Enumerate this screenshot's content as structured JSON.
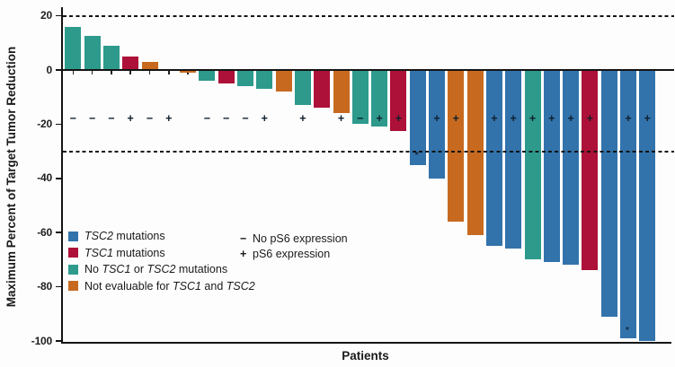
{
  "chart_data": {
    "type": "bar",
    "title": "",
    "xlabel": "Patients",
    "ylabel": "Maximum Percent of Target Tumor Reduction",
    "ylim": [
      -100,
      22
    ],
    "yticks": [
      20,
      0,
      -20,
      -40,
      -60,
      -80,
      -100
    ],
    "reference_lines_dashed": [
      20,
      -30
    ],
    "grid": false,
    "colors": {
      "tsc2": "#3273ac",
      "tsc1": "#ad1038",
      "no_tsc1_tsc2": "#2d9a8c",
      "not_evaluable": "#c76a20"
    },
    "patients": [
      {
        "value": 16,
        "group": "no_tsc1_tsc2",
        "ps6": "−"
      },
      {
        "value": 12.5,
        "group": "no_tsc1_tsc2",
        "ps6": "−"
      },
      {
        "value": 9,
        "group": "no_tsc1_tsc2",
        "ps6": "−"
      },
      {
        "value": 5,
        "group": "tsc1",
        "ps6": "+"
      },
      {
        "value": 3,
        "group": "not_evaluable",
        "ps6": "−"
      },
      {
        "value": 0,
        "group": null,
        "ps6": "+"
      },
      {
        "value": -1,
        "group": "not_evaluable",
        "ps6": null
      },
      {
        "value": -4,
        "group": "no_tsc1_tsc2",
        "ps6": "−"
      },
      {
        "value": -5,
        "group": "tsc1",
        "ps6": "−"
      },
      {
        "value": -6,
        "group": "no_tsc1_tsc2",
        "ps6": "−"
      },
      {
        "value": -7,
        "group": "no_tsc1_tsc2",
        "ps6": "+"
      },
      {
        "value": -8,
        "group": "not_evaluable",
        "ps6": null
      },
      {
        "value": -13,
        "group": "no_tsc1_tsc2",
        "ps6": "+"
      },
      {
        "value": -14,
        "group": "tsc1",
        "ps6": null
      },
      {
        "value": -16,
        "group": "not_evaluable",
        "ps6": "+"
      },
      {
        "value": -20,
        "group": "no_tsc1_tsc2",
        "ps6": "−"
      },
      {
        "value": -21,
        "group": "no_tsc1_tsc2",
        "ps6": "+"
      },
      {
        "value": -22.5,
        "group": "tsc1",
        "ps6": "+"
      },
      {
        "value": -35,
        "group": "tsc2",
        "ps6": null,
        "marker": "*",
        "marker_value": -31.5
      },
      {
        "value": -40,
        "group": "tsc2",
        "ps6": "+"
      },
      {
        "value": -56,
        "group": "not_evaluable",
        "ps6": "+"
      },
      {
        "value": -61,
        "group": "not_evaluable",
        "ps6": null
      },
      {
        "value": -65,
        "group": "tsc2",
        "ps6": "+"
      },
      {
        "value": -66,
        "group": "tsc2",
        "ps6": "+"
      },
      {
        "value": -70,
        "group": "no_tsc1_tsc2",
        "ps6": "+"
      },
      {
        "value": -71,
        "group": "tsc2",
        "ps6": "+"
      },
      {
        "value": -72,
        "group": "tsc2",
        "ps6": "+"
      },
      {
        "value": -74,
        "group": "tsc1",
        "ps6": "+"
      },
      {
        "value": -91,
        "group": "tsc2",
        "ps6": null
      },
      {
        "value": -99,
        "group": "tsc2",
        "ps6": "+",
        "marker": "*",
        "marker_value": -96
      },
      {
        "value": -100,
        "group": "tsc2",
        "ps6": "+"
      }
    ],
    "legend": {
      "items": [
        {
          "color_key": "tsc2",
          "segments": [
            {
              "t": "TSC2",
              "i": true
            },
            {
              "t": " mutations",
              "i": false
            }
          ]
        },
        {
          "color_key": "tsc1",
          "segments": [
            {
              "t": "TSC1",
              "i": true
            },
            {
              "t": " mutations",
              "i": false
            }
          ]
        },
        {
          "color_key": "no_tsc1_tsc2",
          "segments": [
            {
              "t": "No ",
              "i": false
            },
            {
              "t": "TSC1",
              "i": true
            },
            {
              "t": " or ",
              "i": false
            },
            {
              "t": "TSC2",
              "i": true
            },
            {
              "t": " mutations",
              "i": false
            }
          ]
        },
        {
          "color_key": "not_evaluable",
          "segments": [
            {
              "t": "Not evaluable for ",
              "i": false
            },
            {
              "t": "TSC1",
              "i": true
            },
            {
              "t": " and ",
              "i": false
            },
            {
              "t": "TSC2",
              "i": true
            }
          ]
        }
      ],
      "ps6": [
        {
          "symbol": "−",
          "label": "No pS6 expression"
        },
        {
          "symbol": "+",
          "label": "pS6 expression"
        }
      ]
    }
  }
}
